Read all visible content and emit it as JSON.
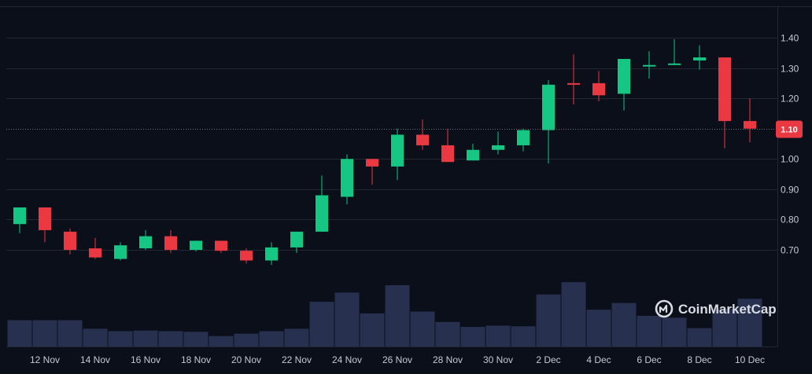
{
  "watermark": {
    "text": "CoinMarketCap"
  },
  "current_price": {
    "label": "1.10",
    "value": 1.1
  },
  "colors": {
    "up": "#16c784",
    "down": "#ea3943",
    "volume": "#27304f",
    "grid": "#222733",
    "background": "#0b0f19",
    "tag": "#ea3943"
  },
  "chart_data": {
    "type": "candlestick",
    "title": "",
    "xlabel": "",
    "ylabel": "",
    "ylim": [
      0.6,
      1.5
    ],
    "y_ticks": [
      0.7,
      0.8,
      0.9,
      1.0,
      1.1,
      1.2,
      1.3,
      1.4
    ],
    "y_tick_labels": [
      "0.70",
      "0.80",
      "0.90",
      "1.00",
      "1.10",
      "1.20",
      "1.30",
      "1.40"
    ],
    "x_tick_labels": [
      "12 Nov",
      "14 Nov",
      "16 Nov",
      "18 Nov",
      "20 Nov",
      "22 Nov",
      "24 Nov",
      "26 Nov",
      "28 Nov",
      "30 Nov",
      "2 Dec",
      "4 Dec",
      "6 Dec",
      "8 Dec",
      "10 Dec"
    ],
    "grid": true,
    "legend": "none",
    "candles": [
      {
        "o": 0.785,
        "h": 0.84,
        "l": 0.755,
        "c": 0.84
      },
      {
        "o": 0.84,
        "h": 0.84,
        "l": 0.725,
        "c": 0.765
      },
      {
        "o": 0.76,
        "h": 0.77,
        "l": 0.685,
        "c": 0.7
      },
      {
        "o": 0.705,
        "h": 0.74,
        "l": 0.67,
        "c": 0.675
      },
      {
        "o": 0.67,
        "h": 0.725,
        "l": 0.665,
        "c": 0.715
      },
      {
        "o": 0.705,
        "h": 0.765,
        "l": 0.7,
        "c": 0.745
      },
      {
        "o": 0.745,
        "h": 0.765,
        "l": 0.69,
        "c": 0.7
      },
      {
        "o": 0.7,
        "h": 0.73,
        "l": 0.695,
        "c": 0.73
      },
      {
        "o": 0.73,
        "h": 0.73,
        "l": 0.69,
        "c": 0.697
      },
      {
        "o": 0.697,
        "h": 0.705,
        "l": 0.655,
        "c": 0.665
      },
      {
        "o": 0.665,
        "h": 0.725,
        "l": 0.65,
        "c": 0.708
      },
      {
        "o": 0.708,
        "h": 0.76,
        "l": 0.69,
        "c": 0.76
      },
      {
        "o": 0.76,
        "h": 0.945,
        "l": 0.76,
        "c": 0.88
      },
      {
        "o": 0.875,
        "h": 1.015,
        "l": 0.85,
        "c": 1.0
      },
      {
        "o": 1.0,
        "h": 1.0,
        "l": 0.915,
        "c": 0.975
      },
      {
        "o": 0.975,
        "h": 1.1,
        "l": 0.93,
        "c": 1.08
      },
      {
        "o": 1.08,
        "h": 1.13,
        "l": 1.03,
        "c": 1.045
      },
      {
        "o": 1.045,
        "h": 1.1,
        "l": 0.99,
        "c": 0.99
      },
      {
        "o": 0.995,
        "h": 1.05,
        "l": 0.995,
        "c": 1.03
      },
      {
        "o": 1.03,
        "h": 1.09,
        "l": 1.015,
        "c": 1.045
      },
      {
        "o": 1.045,
        "h": 1.1,
        "l": 1.025,
        "c": 1.095
      },
      {
        "o": 1.095,
        "h": 1.26,
        "l": 0.985,
        "c": 1.245
      },
      {
        "o": 1.25,
        "h": 1.345,
        "l": 1.18,
        "c": 1.245
      },
      {
        "o": 1.25,
        "h": 1.29,
        "l": 1.19,
        "c": 1.21
      },
      {
        "o": 1.215,
        "h": 1.33,
        "l": 1.16,
        "c": 1.33
      },
      {
        "o": 1.31,
        "h": 1.355,
        "l": 1.265,
        "c": 1.31
      },
      {
        "o": 1.31,
        "h": 1.395,
        "l": 1.31,
        "c": 1.315
      },
      {
        "o": 1.325,
        "h": 1.375,
        "l": 1.295,
        "c": 1.335
      },
      {
        "o": 1.335,
        "h": 1.335,
        "l": 1.035,
        "c": 1.125
      },
      {
        "o": 1.125,
        "h": 1.2,
        "l": 1.055,
        "c": 1.1
      }
    ],
    "volume": [
      0.43,
      0.43,
      0.43,
      0.29,
      0.25,
      0.26,
      0.25,
      0.24,
      0.17,
      0.21,
      0.25,
      0.29,
      0.73,
      0.88,
      0.54,
      1.0,
      0.57,
      0.4,
      0.32,
      0.34,
      0.33,
      0.85,
      1.05,
      0.6,
      0.71,
      0.5,
      0.47,
      0.3,
      0.61,
      0.78
    ]
  }
}
